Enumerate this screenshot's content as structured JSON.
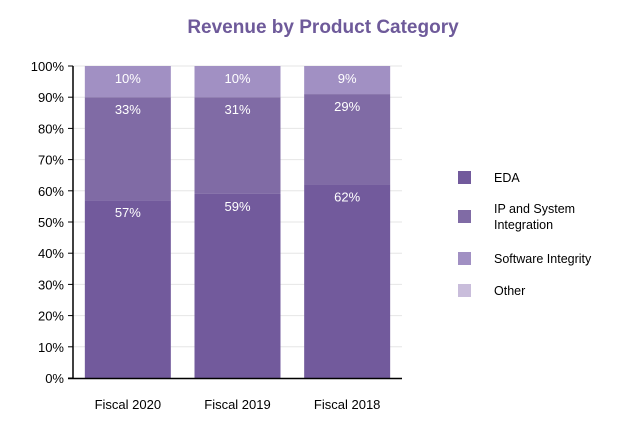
{
  "chart_data": {
    "type": "bar",
    "stacked": true,
    "title": "Revenue by Product Category",
    "categories": [
      "Fiscal 2020",
      "Fiscal 2019",
      "Fiscal 2018"
    ],
    "series": [
      {
        "name": "EDA",
        "values": [
          57,
          59,
          62
        ],
        "labels": [
          "57%",
          "59%",
          "62%"
        ],
        "color": "#725a9c"
      },
      {
        "name": "IP and System Integration",
        "values": [
          33,
          31,
          29
        ],
        "labels": [
          "33%",
          "31%",
          "29%"
        ],
        "color": "#806ba5"
      },
      {
        "name": "Software Integrity",
        "values": [
          10,
          10,
          9
        ],
        "labels": [
          "10%",
          "10%",
          "9%"
        ],
        "color": "#a190c3"
      },
      {
        "name": "Other",
        "values": [
          0,
          0,
          0
        ],
        "labels": [
          "",
          "",
          ""
        ],
        "color": "#c9bddb"
      }
    ],
    "ylim": [
      0,
      100
    ],
    "yticks": [
      "0%",
      "10%",
      "20%",
      "30%",
      "40%",
      "50%",
      "60%",
      "70%",
      "80%",
      "90%",
      "100%"
    ],
    "grid": true,
    "legend_position": "right",
    "title_color": "#6e5a9a"
  }
}
